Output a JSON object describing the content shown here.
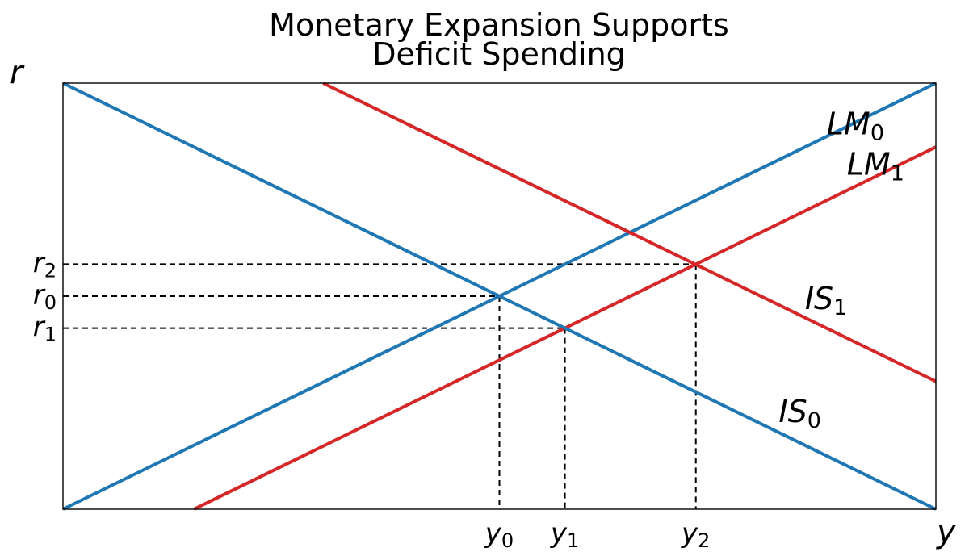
{
  "chart_data": {
    "type": "line",
    "title": "Monetary Expansion Supports\nDeficit Spending",
    "title_lines": [
      "Monetary Expansion Supports",
      "Deficit Spending"
    ],
    "xlabel": "y",
    "ylabel": "r",
    "xlim": [
      0,
      10
    ],
    "ylim": [
      0,
      10
    ],
    "show_axis_ticks": false,
    "grid": false,
    "colors": {
      "blue": "#1f77b4",
      "red": "#d62728",
      "guide": "#000000"
    },
    "series": [
      {
        "id": "LM0",
        "label_main": "LM",
        "label_sub": "0",
        "color": "#1f77b4",
        "x": [
          0,
          10
        ],
        "y": [
          0,
          10
        ],
        "label_at": [
          8.75,
          8.8
        ]
      },
      {
        "id": "LM1",
        "label_main": "LM",
        "label_sub": "1",
        "color": "#d62728",
        "x": [
          1.5,
          10
        ],
        "y": [
          0,
          8.5
        ],
        "label_at": [
          8.98,
          7.85
        ]
      },
      {
        "id": "IS0",
        "label_main": "IS",
        "label_sub": "0",
        "color": "#1f77b4",
        "x": [
          0,
          10
        ],
        "y": [
          10,
          0
        ],
        "label_at": [
          8.2,
          2.05
        ]
      },
      {
        "id": "IS1",
        "label_main": "IS",
        "label_sub": "1",
        "color": "#d62728",
        "x": [
          2.98,
          10
        ],
        "y": [
          10,
          3.0
        ],
        "label_at": [
          8.5,
          4.7
        ]
      }
    ],
    "equilibria": [
      {
        "x_label": "y",
        "x_sub": "0",
        "y_label": "r",
        "y_sub": "0",
        "x": 5.0,
        "y": 5.0
      },
      {
        "x_label": "y",
        "x_sub": "1",
        "y_label": "r",
        "y_sub": "1",
        "x": 5.75,
        "y": 4.25
      },
      {
        "x_label": "y",
        "x_sub": "2",
        "y_label": "r",
        "y_sub": "2",
        "x": 7.25,
        "y": 5.75
      }
    ]
  }
}
